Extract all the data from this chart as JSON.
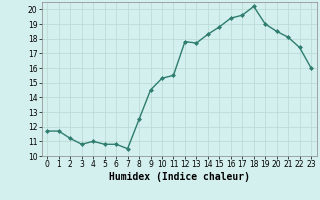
{
  "x": [
    0,
    1,
    2,
    3,
    4,
    5,
    6,
    7,
    8,
    9,
    10,
    11,
    12,
    13,
    14,
    15,
    16,
    17,
    18,
    19,
    20,
    21,
    22,
    23
  ],
  "y": [
    11.7,
    11.7,
    11.2,
    10.8,
    11.0,
    10.8,
    10.8,
    10.5,
    12.5,
    14.5,
    15.3,
    15.5,
    17.8,
    17.7,
    18.3,
    18.8,
    19.4,
    19.6,
    20.2,
    19.0,
    18.5,
    18.1,
    17.4,
    16.0
  ],
  "line_color": "#2e7d6e",
  "marker": "D",
  "marker_size": 2.0,
  "line_width": 1.0,
  "xlabel": "Humidex (Indice chaleur)",
  "xlim": [
    -0.5,
    23.5
  ],
  "ylim": [
    10,
    20.5
  ],
  "yticks": [
    10,
    11,
    12,
    13,
    14,
    15,
    16,
    17,
    18,
    19,
    20
  ],
  "xticks": [
    0,
    1,
    2,
    3,
    4,
    5,
    6,
    7,
    8,
    9,
    10,
    11,
    12,
    13,
    14,
    15,
    16,
    17,
    18,
    19,
    20,
    21,
    22,
    23
  ],
  "bg_color": "#d4f0ee",
  "grid_color": "#b8d8d4",
  "tick_label_fontsize": 5.5,
  "xlabel_fontsize": 7.0
}
